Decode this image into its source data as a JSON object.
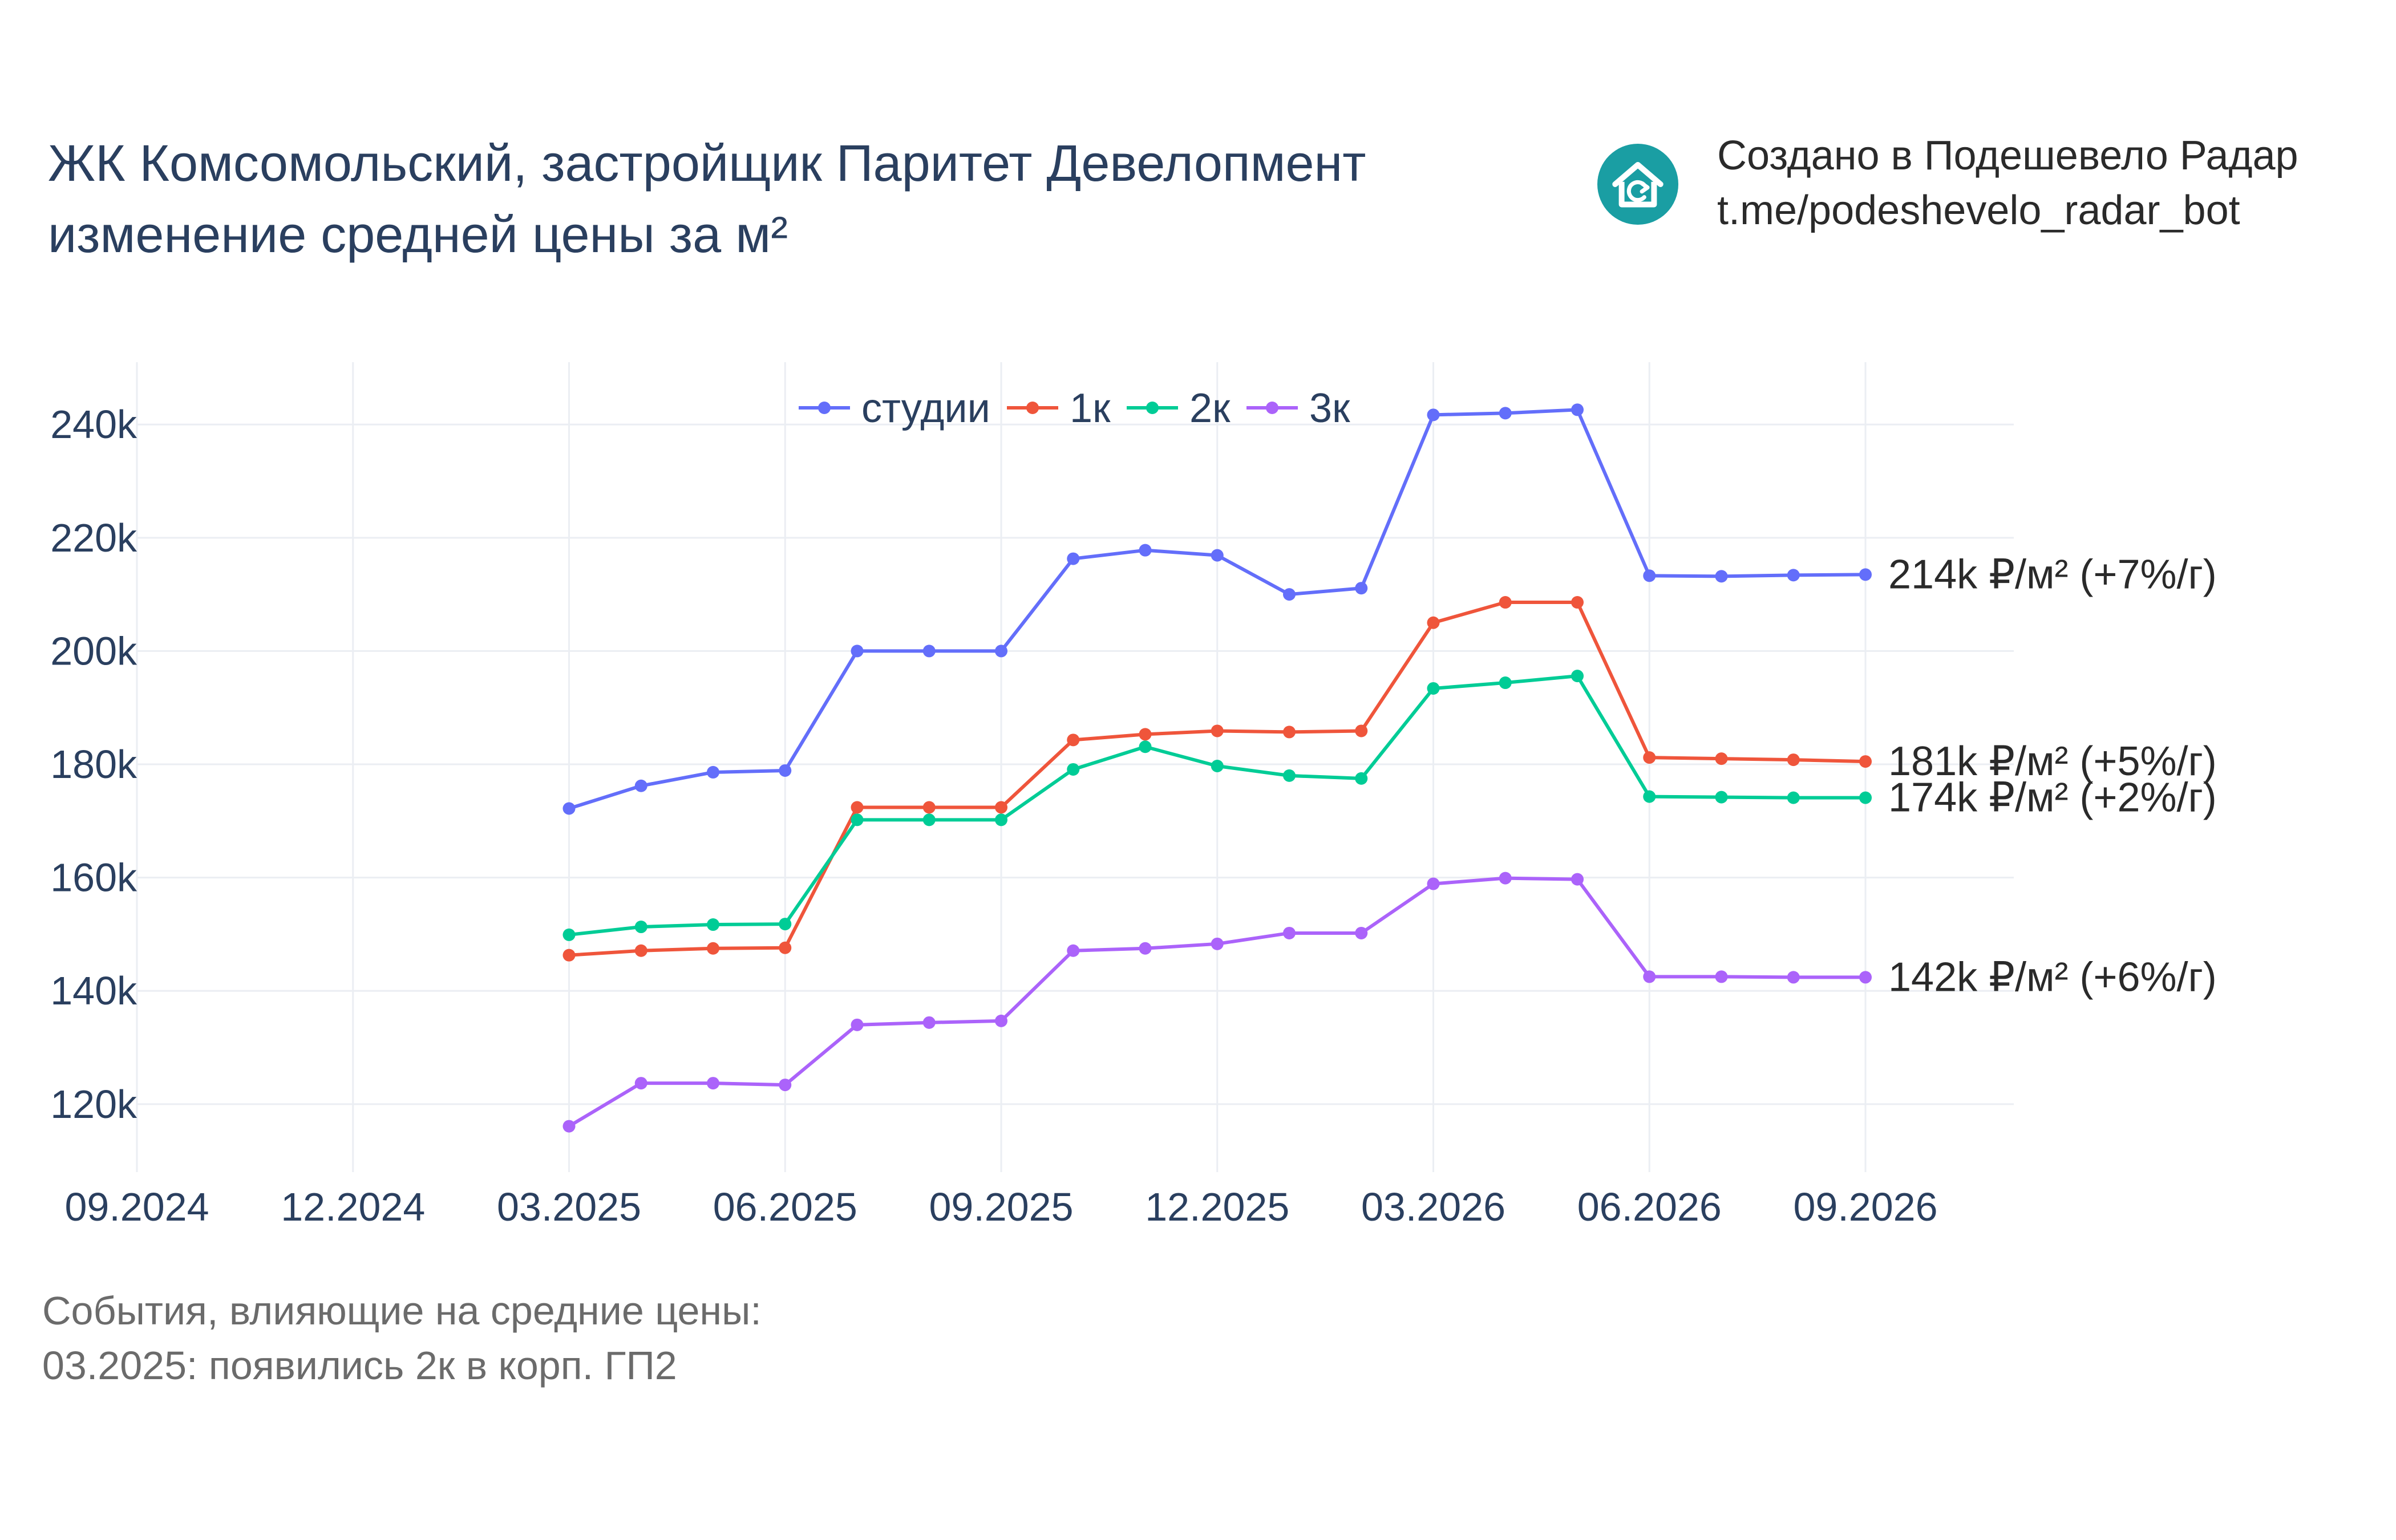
{
  "header": {
    "title_line1": "ЖК Комсомольский, застройщик Паритет Девелопмент",
    "title_line2": "изменение средней цены за м²"
  },
  "brand": {
    "logo_icon": "house-refresh-icon",
    "logo_color": "#1a9ea3",
    "line1": "Создано в Подешевело Радар",
    "line2": "t.me/podeshevelo_radar_bot"
  },
  "events": {
    "heading": "События, влияющие на средние цены:",
    "items": [
      "03.2025: появились 2к в корп. ГП2"
    ]
  },
  "chart_data": {
    "type": "line",
    "x_ticks": [
      "09.2024",
      "12.2024",
      "03.2025",
      "06.2025",
      "09.2025",
      "12.2025",
      "03.2026",
      "06.2026",
      "09.2026"
    ],
    "y_ticks": [
      120000,
      140000,
      160000,
      180000,
      200000,
      220000,
      240000
    ],
    "y_tick_labels": [
      "120k",
      "140k",
      "160k",
      "180k",
      "200k",
      "220k",
      "240k"
    ],
    "ylim": [
      108000,
      251000
    ],
    "grid": true,
    "legend_position": "top-center",
    "x": [
      "03.2025",
      "04.2025",
      "05.2025",
      "06.2025",
      "07.2025",
      "08.2025",
      "09.2025",
      "10.2025",
      "11.2025",
      "12.2025",
      "01.2026",
      "02.2026",
      "03.2026",
      "04.2026",
      "05.2026",
      "06.2026",
      "07.2026",
      "08.2026",
      "09.2026"
    ],
    "series": [
      {
        "name": "студии",
        "color": "#636efa",
        "end_label": "214k ₽/м² (+7%/г)",
        "values": [
          172200,
          176200,
          178600,
          178900,
          200000,
          200000,
          200000,
          216300,
          217800,
          216900,
          210000,
          211100,
          241700,
          242000,
          242600,
          213300,
          213200,
          213400,
          213500
        ]
      },
      {
        "name": "1к",
        "color": "#ef553b",
        "end_label": "181k ₽/м² (+5%/г)",
        "values": [
          146300,
          147100,
          147500,
          147600,
          172400,
          172400,
          172400,
          184300,
          185300,
          185900,
          185700,
          185900,
          205000,
          208600,
          208600,
          181200,
          181000,
          180800,
          180500
        ]
      },
      {
        "name": "2к",
        "color": "#00cc96",
        "end_label": "174k ₽/м² (+2%/г)",
        "values": [
          149900,
          151300,
          151700,
          151800,
          170200,
          170200,
          170200,
          179100,
          183100,
          179700,
          178000,
          177500,
          193400,
          194400,
          195600,
          174300,
          174200,
          174100,
          174100
        ]
      },
      {
        "name": "3к",
        "color": "#ab63fa",
        "end_label": "142k ₽/м² (+6%/г)",
        "values": [
          116100,
          123700,
          123700,
          123400,
          134000,
          134400,
          134700,
          147100,
          147500,
          148300,
          150200,
          150200,
          158900,
          159900,
          159700,
          142500,
          142500,
          142400,
          142400
        ]
      }
    ]
  }
}
